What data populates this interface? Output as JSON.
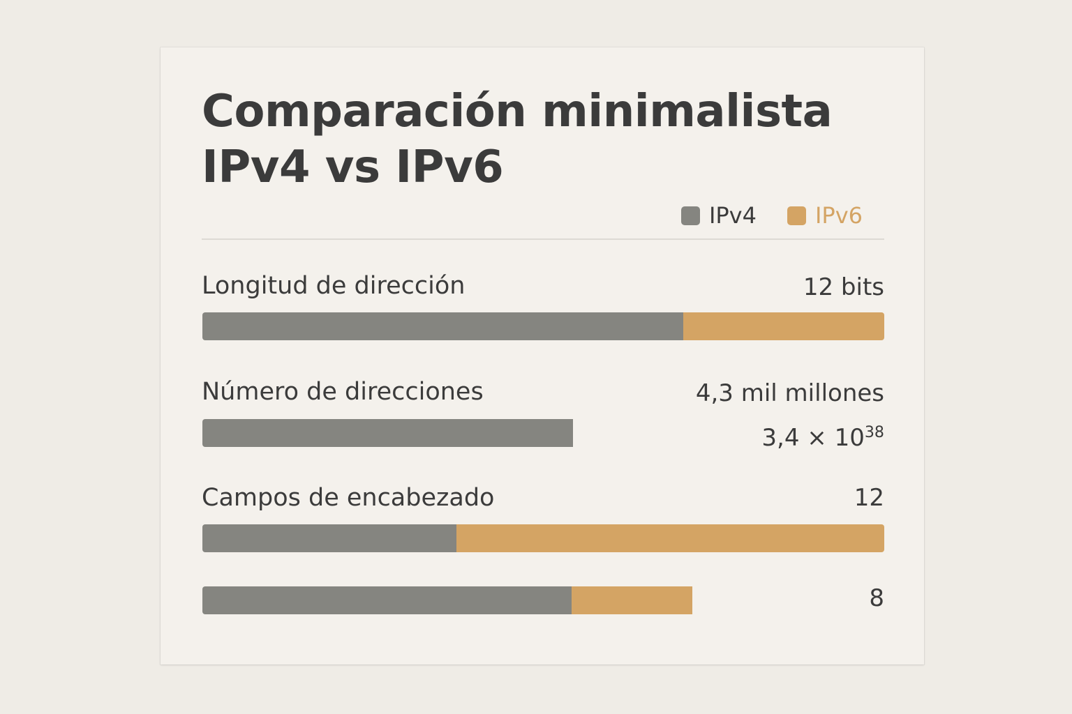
{
  "title_line1": "Comparación minimalista",
  "title_line2": "IPv4 vs IPv6",
  "legend": [
    {
      "label": "IPv4",
      "color": "#858580"
    },
    {
      "label": "IPv6",
      "color": "#d4a464"
    }
  ],
  "colors": {
    "ipv4": "#858580",
    "ipv6": "#d4a464",
    "text": "#3b3b3b"
  },
  "chart_data": {
    "type": "bar",
    "orientation": "horizontal-stacked",
    "series": [
      {
        "name": "IPv4",
        "values": [
          0.705,
          0.543,
          0.373,
          0.541
        ]
      },
      {
        "name": "IPv6",
        "values": [
          0.295,
          0.0,
          0.627,
          0.177
        ]
      }
    ],
    "rows": [
      {
        "label": "Longitud de dirección",
        "value": "12 bits"
      },
      {
        "label": "Número de direcciones",
        "value": "4,3 mil millones",
        "value2_base": "3,4 × 10",
        "value2_exp": "38"
      },
      {
        "label": "Campos de encabezado",
        "value": "12"
      },
      {
        "label": "",
        "value": "8"
      }
    ]
  }
}
